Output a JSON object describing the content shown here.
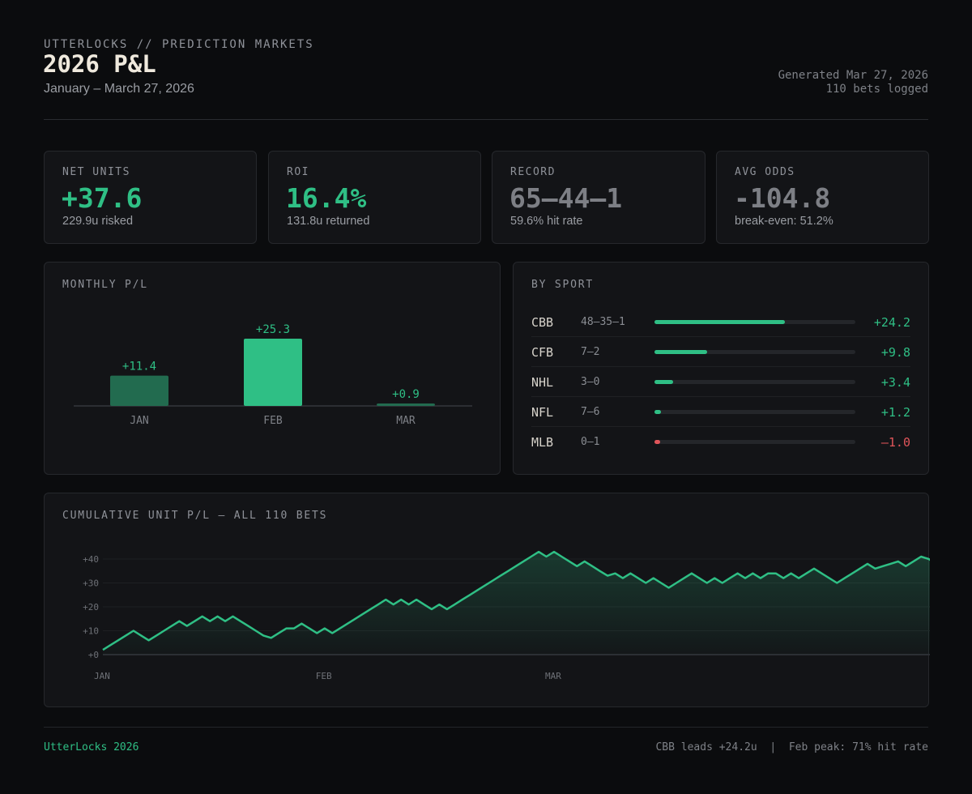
{
  "header": {
    "brand": "UTTERLOCKS // PREDICTION MARKETS",
    "title": "2026 P&L",
    "subtitle": "January – March 27, 2026",
    "generated": "Generated Mar 27, 2026",
    "bets_logged": "110 bets logged"
  },
  "kpis": [
    {
      "label": "NET UNITS",
      "value": "+37.6",
      "sub": "229.9u risked"
    },
    {
      "label": "ROI",
      "value": "16.4%",
      "sub": "131.8u returned"
    },
    {
      "label": "RECORD",
      "value": "65–44–1",
      "sub": "59.6% hit rate"
    },
    {
      "label": "AVG ODDS",
      "value": "-104.8",
      "sub": "break-even: 51.2%"
    }
  ],
  "monthly": {
    "label": "MONTHLY P/L"
  },
  "by_sport": {
    "label": "BY SPORT",
    "rows": [
      {
        "sport": "CBB",
        "record": "48–35–1",
        "units": "+24.2",
        "value": 24.2
      },
      {
        "sport": "CFB",
        "record": "7–2",
        "units": "+9.8",
        "value": 9.8
      },
      {
        "sport": "NHL",
        "record": "3–0",
        "units": "+3.4",
        "value": 3.4
      },
      {
        "sport": "NFL",
        "record": "7–6",
        "units": "+1.2",
        "value": 1.2
      },
      {
        "sport": "MLB",
        "record": "0–1",
        "units": "–1.0",
        "value": -1.0
      }
    ]
  },
  "cumulative": {
    "label": "CUMULATIVE UNIT P/L — ALL 110 BETS"
  },
  "colors": {
    "accent": "#2fbf85",
    "accent_dark": "#226b4f",
    "negative": "#e0555a"
  },
  "footer": {
    "left": "UtterLocks 2026",
    "right": "CBB leads +24.2u  |  Feb peak: 71% hit rate"
  },
  "chart_data": [
    {
      "type": "bar",
      "title": "MONTHLY P/L",
      "categories": [
        "JAN",
        "FEB",
        "MAR"
      ],
      "values": [
        11.4,
        25.3,
        0.9
      ],
      "labels": [
        "+11.4",
        "+25.3",
        "+0.9"
      ],
      "ylim": [
        0,
        25.3
      ]
    },
    {
      "type": "line",
      "title": "CUMULATIVE UNIT P/L — ALL 110 BETS",
      "x_ticks": [
        {
          "label": "JAN",
          "index": 0
        },
        {
          "label": "FEB",
          "index": 29
        },
        {
          "label": "MAR",
          "index": 59
        }
      ],
      "x_end_marker": "→",
      "y_ticks": [
        0,
        10,
        20,
        30,
        40
      ],
      "y_tick_labels": [
        "+0",
        "+10",
        "+20",
        "+30",
        "+40"
      ],
      "ylim": [
        -2,
        44
      ],
      "values": [
        2,
        4,
        6,
        8,
        10,
        8,
        6,
        8,
        10,
        12,
        14,
        12,
        14,
        16,
        14,
        16,
        14,
        16,
        14,
        12,
        10,
        8,
        7,
        9,
        11,
        11,
        13,
        11,
        9,
        11,
        9,
        11,
        13,
        15,
        17,
        19,
        21,
        23,
        21,
        23,
        21,
        23,
        21,
        19,
        21,
        19,
        21,
        23,
        25,
        27,
        29,
        31,
        33,
        35,
        37,
        39,
        41,
        43,
        41,
        43,
        41,
        39,
        37,
        39,
        37,
        35,
        33,
        34,
        32,
        34,
        32,
        30,
        32,
        30,
        28,
        30,
        32,
        34,
        32,
        30,
        32,
        30,
        32,
        34,
        32,
        34,
        32,
        34,
        34,
        32,
        34,
        32,
        34,
        36,
        34,
        32,
        30,
        32,
        34,
        36,
        38,
        36,
        37,
        38,
        39,
        37,
        39,
        41,
        40,
        38
      ]
    }
  ]
}
